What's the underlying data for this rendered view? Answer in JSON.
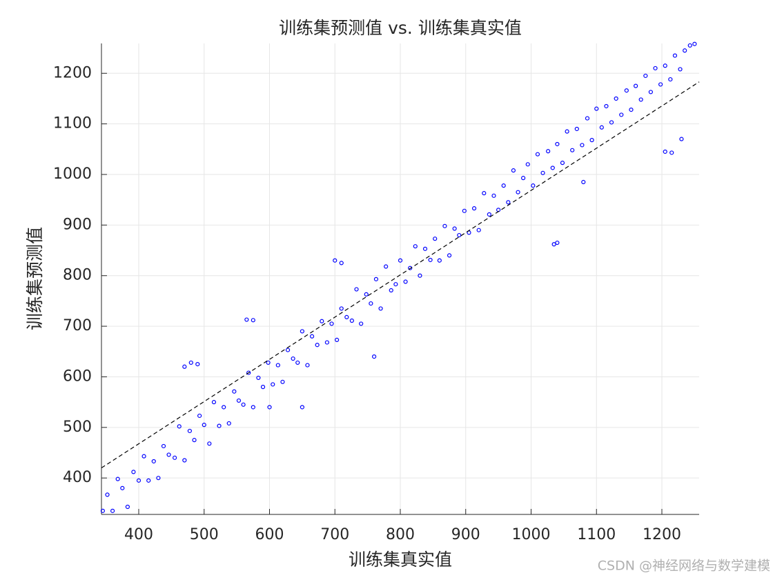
{
  "chart_data": {
    "type": "scatter",
    "title": "训练集预测值 vs. 训练集真实值",
    "x_label": "训练集真实值",
    "y_label": "训练集预测值",
    "watermark": "CSDN @神经网络与数学建模",
    "xlim": [
      343,
      1257
    ],
    "ylim": [
      328,
      1259
    ],
    "xticks": [
      400,
      500,
      600,
      700,
      800,
      900,
      1000,
      1100,
      1200
    ],
    "yticks": [
      400,
      500,
      600,
      700,
      800,
      900,
      1000,
      1100,
      1200
    ],
    "grid": true,
    "color": "#0000ff",
    "x": [
      345,
      352,
      360,
      368,
      375,
      383,
      392,
      400,
      408,
      415,
      423,
      430,
      438,
      446,
      455,
      462,
      470,
      478,
      485,
      493,
      500,
      508,
      515,
      523,
      530,
      538,
      546,
      553,
      560,
      568,
      575,
      583,
      590,
      598,
      605,
      613,
      620,
      628,
      636,
      643,
      650,
      658,
      665,
      673,
      680,
      688,
      695,
      703,
      710,
      718,
      726,
      733,
      740,
      748,
      755,
      763,
      770,
      778,
      786,
      793,
      800,
      808,
      815,
      823,
      830,
      838,
      846,
      853,
      860,
      868,
      875,
      883,
      890,
      898,
      905,
      913,
      920,
      928,
      936,
      943,
      950,
      958,
      965,
      973,
      980,
      988,
      995,
      1003,
      1010,
      1018,
      1026,
      1033,
      1040,
      1048,
      1055,
      1063,
      1070,
      1078,
      1086,
      1093,
      1100,
      1108,
      1115,
      1123,
      1130,
      1138,
      1146,
      1153,
      1160,
      1168,
      1175,
      1183,
      1190,
      1198,
      1205,
      1213,
      1220,
      1228,
      1235,
      1243,
      1250,
      480,
      470,
      490,
      565,
      575,
      700,
      710,
      1040,
      1035,
      1205,
      1215,
      1230,
      1080,
      600,
      650,
      760
    ],
    "values": [
      335,
      367,
      335,
      398,
      380,
      343,
      412,
      395,
      443,
      395,
      433,
      400,
      463,
      446,
      440,
      502,
      435,
      493,
      475,
      523,
      505,
      468,
      550,
      503,
      540,
      508,
      571,
      553,
      545,
      608,
      540,
      598,
      580,
      628,
      585,
      623,
      590,
      653,
      636,
      628,
      690,
      623,
      680,
      663,
      710,
      668,
      705,
      673,
      735,
      718,
      711,
      773,
      705,
      763,
      745,
      793,
      735,
      818,
      771,
      783,
      830,
      788,
      815,
      858,
      800,
      853,
      831,
      873,
      830,
      898,
      840,
      893,
      880,
      928,
      885,
      933,
      890,
      963,
      921,
      958,
      930,
      978,
      945,
      1008,
      965,
      993,
      1020,
      978,
      1040,
      1003,
      1046,
      1013,
      1060,
      1023,
      1085,
      1048,
      1090,
      1058,
      1111,
      1068,
      1130,
      1093,
      1135,
      1103,
      1150,
      1118,
      1166,
      1128,
      1175,
      1148,
      1195,
      1163,
      1210,
      1178,
      1215,
      1188,
      1235,
      1208,
      1245,
      1255,
      1258,
      628,
      620,
      625,
      713,
      712,
      830,
      825,
      865,
      862,
      1045,
      1043,
      1070,
      985,
      540,
      540,
      640
    ],
    "reference_line": {
      "x": [
        343,
        1257
      ],
      "values": [
        420,
        1183
      ],
      "color": "#000000"
    }
  }
}
